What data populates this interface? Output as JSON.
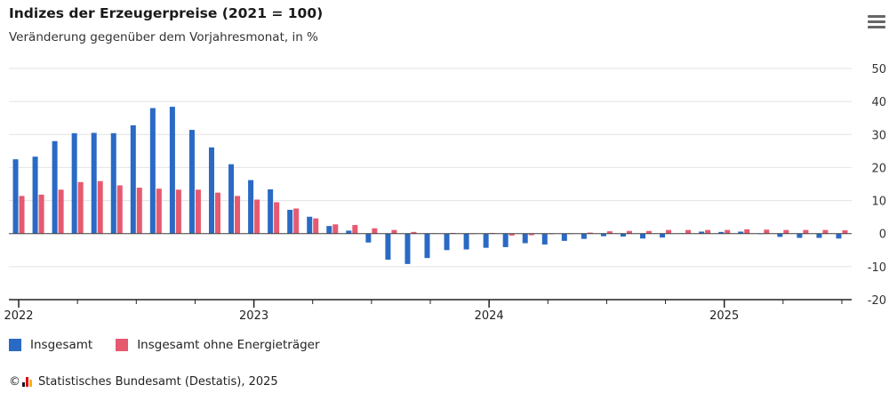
{
  "header": {
    "title": "Indizes der Erzeugerpreise (2021 = 100)",
    "subtitle": "Veränderung gegenüber dem Vorjahresmonat, in %"
  },
  "menu_icon": "hamburger-menu-icon",
  "colors": {
    "series1": "#2a6ac4",
    "series2": "#e65a70",
    "grid": "#e3e3e3",
    "axis": "#222222"
  },
  "legend": {
    "items": [
      {
        "label": "Insgesamt",
        "color": "#2a6ac4"
      },
      {
        "label": "Insgesamt ohne Energieträger",
        "color": "#e65a70"
      }
    ]
  },
  "footer": {
    "copyright": "©",
    "source": "Statistisches Bundesamt (Destatis), 2025",
    "logo_colors": [
      "#1a1a1a",
      "#e30613",
      "#f5b800"
    ]
  },
  "chart_data": {
    "type": "bar",
    "title": "Indizes der Erzeugerpreise (2021 = 100)",
    "subtitle": "Veränderung gegenüber dem Vorjahresmonat, in %",
    "ylim": [
      -20,
      50
    ],
    "yticks": [
      -20,
      -10,
      0,
      10,
      20,
      30,
      40,
      50
    ],
    "y_axis_position": "right",
    "grid": true,
    "legend_position": "bottom-left",
    "x_labels": [
      {
        "label": "2022",
        "index": 0
      },
      {
        "label": "2023",
        "index": 12
      },
      {
        "label": "2024",
        "index": 24
      },
      {
        "label": "2025",
        "index": 36
      }
    ],
    "categories": [
      "2022-01",
      "2022-02",
      "2022-03",
      "2022-04",
      "2022-05",
      "2022-06",
      "2022-07",
      "2022-08",
      "2022-09",
      "2022-10",
      "2022-11",
      "2022-12",
      "2023-01",
      "2023-02",
      "2023-03",
      "2023-04",
      "2023-05",
      "2023-06",
      "2023-07",
      "2023-08",
      "2023-09",
      "2023-10",
      "2023-11",
      "2023-12",
      "2024-01",
      "2024-02",
      "2024-03",
      "2024-04",
      "2024-05",
      "2024-06",
      "2024-07",
      "2024-08",
      "2024-09",
      "2024-10",
      "2024-11",
      "2024-12",
      "2025-01",
      "2025-02",
      "2025-03",
      "2025-04",
      "2025-05",
      "2025-06",
      "2025-07"
    ],
    "series": [
      {
        "name": "Insgesamt",
        "values": [
          22.5,
          23.3,
          28.0,
          30.4,
          30.5,
          30.4,
          32.8,
          38.0,
          38.4,
          31.4,
          26.1,
          21.0,
          16.2,
          13.4,
          7.2,
          5.1,
          2.3,
          0.9,
          -2.7,
          -7.9,
          -9.2,
          -7.4,
          -5.0,
          -4.8,
          -4.3,
          -4.1,
          -2.9,
          -3.3,
          -2.2,
          -1.6,
          -0.8,
          -0.9,
          -1.5,
          -1.2,
          0.1,
          0.6,
          0.5,
          0.6,
          0.0,
          -1.0,
          -1.3,
          -1.3,
          -1.5
        ]
      },
      {
        "name": "Insgesamt ohne Energieträger",
        "values": [
          11.4,
          11.8,
          13.3,
          15.6,
          15.9,
          14.6,
          13.9,
          13.6,
          13.3,
          13.3,
          12.4,
          11.4,
          10.3,
          9.5,
          7.6,
          4.6,
          2.8,
          2.6,
          1.6,
          1.1,
          0.5,
          0.1,
          0.2,
          0.0,
          0.2,
          -0.6,
          -0.5,
          -0.2,
          0.0,
          0.3,
          0.7,
          0.8,
          0.8,
          1.1,
          1.1,
          1.1,
          1.1,
          1.3,
          1.2,
          1.1,
          1.1,
          1.1,
          1.0
        ]
      }
    ]
  }
}
